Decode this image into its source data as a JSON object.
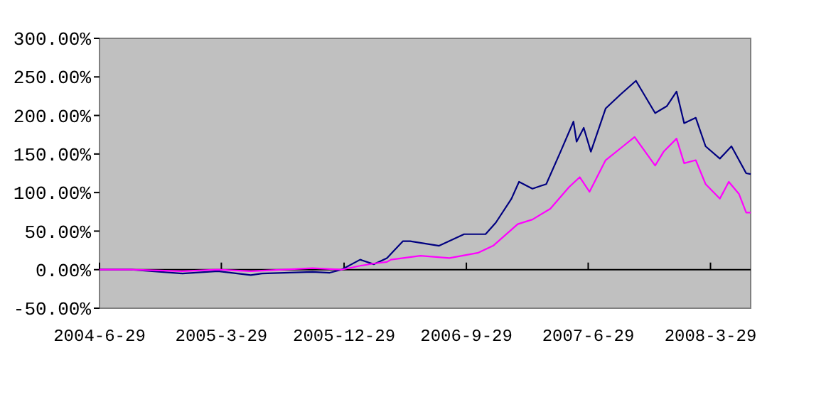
{
  "chart_data": {
    "type": "line",
    "xlim": [
      "2004-06-29",
      "2008-06-27"
    ],
    "xticks": [
      {
        "value": "2004-06-29",
        "label": "2004-6-29"
      },
      {
        "value": "2005-03-29",
        "label": "2005-3-29"
      },
      {
        "value": "2005-12-29",
        "label": "2005-12-29"
      },
      {
        "value": "2006-09-29",
        "label": "2006-9-29"
      },
      {
        "value": "2007-06-29",
        "label": "2007-6-29"
      },
      {
        "value": "2008-03-29",
        "label": "2008-3-29"
      }
    ],
    "ylim": [
      -50,
      300
    ],
    "yticks": [
      {
        "value": -50,
        "label": "-50.00%"
      },
      {
        "value": 0,
        "label": "0.00%"
      },
      {
        "value": 50,
        "label": "50.00%"
      },
      {
        "value": 100,
        "label": "100.00%"
      },
      {
        "value": 150,
        "label": "150.00%"
      },
      {
        "value": 200,
        "label": "200.00%"
      },
      {
        "value": 250,
        "label": "250.00%"
      },
      {
        "value": 300,
        "label": "300.00%"
      }
    ],
    "marker": "none",
    "line_style": "solid",
    "series": [
      {
        "color": "#000080",
        "x": [
          "2004-06-29",
          "2004-09-08",
          "2005-01-01",
          "2005-03-21",
          "2005-06-03",
          "2005-06-28",
          "2005-10-19",
          "2005-11-27",
          "2005-12-23",
          "2006-02-03",
          "2006-03-06",
          "2006-04-04",
          "2006-05-10",
          "2006-05-26",
          "2006-07-30",
          "2006-09-24",
          "2006-11-11",
          "2006-12-04",
          "2007-01-08",
          "2007-01-25",
          "2007-02-24",
          "2007-03-27",
          "2007-04-28",
          "2007-05-27",
          "2007-06-03",
          "2007-06-19",
          "2007-07-05",
          "2007-08-07",
          "2007-09-09",
          "2007-10-14",
          "2007-11-26",
          "2007-12-22",
          "2008-01-13",
          "2008-01-30",
          "2008-02-25",
          "2008-03-18",
          "2008-04-19",
          "2008-05-15",
          "2008-06-17",
          "2008-06-27"
        ],
        "values": [
          0,
          0,
          -5,
          -2,
          -7,
          -5,
          -3,
          -4,
          0,
          13,
          7,
          15,
          37,
          37,
          31,
          46,
          46,
          61,
          92,
          114,
          105,
          111,
          153,
          192,
          166,
          184,
          153,
          209,
          227,
          245,
          203,
          212,
          231,
          190,
          197,
          160,
          144,
          160,
          125,
          124
        ]
      },
      {
        "color": "#ff00ff",
        "x": [
          "2004-06-29",
          "2004-09-08",
          "2005-01-01",
          "2005-03-21",
          "2005-06-03",
          "2005-10-19",
          "2005-12-23",
          "2006-02-03",
          "2006-03-06",
          "2006-04-04",
          "2006-04-13",
          "2006-06-18",
          "2006-08-22",
          "2006-10-26",
          "2006-11-28",
          "2007-01-22",
          "2007-02-24",
          "2007-04-05",
          "2007-05-17",
          "2007-06-10",
          "2007-07-02",
          "2007-08-07",
          "2007-09-15",
          "2007-10-11",
          "2007-11-26",
          "2007-12-15",
          "2008-01-13",
          "2008-01-30",
          "2008-02-25",
          "2008-03-18",
          "2008-04-19",
          "2008-05-09",
          "2008-06-01",
          "2008-06-17",
          "2008-06-27"
        ],
        "values": [
          0,
          0,
          -2,
          0,
          -2,
          2,
          0,
          5,
          8,
          10,
          13,
          18,
          15,
          22,
          31,
          59,
          65,
          79,
          107,
          120,
          101,
          142,
          160,
          172,
          135,
          153,
          170,
          138,
          142,
          111,
          92,
          114,
          98,
          74,
          74
        ]
      }
    ]
  }
}
